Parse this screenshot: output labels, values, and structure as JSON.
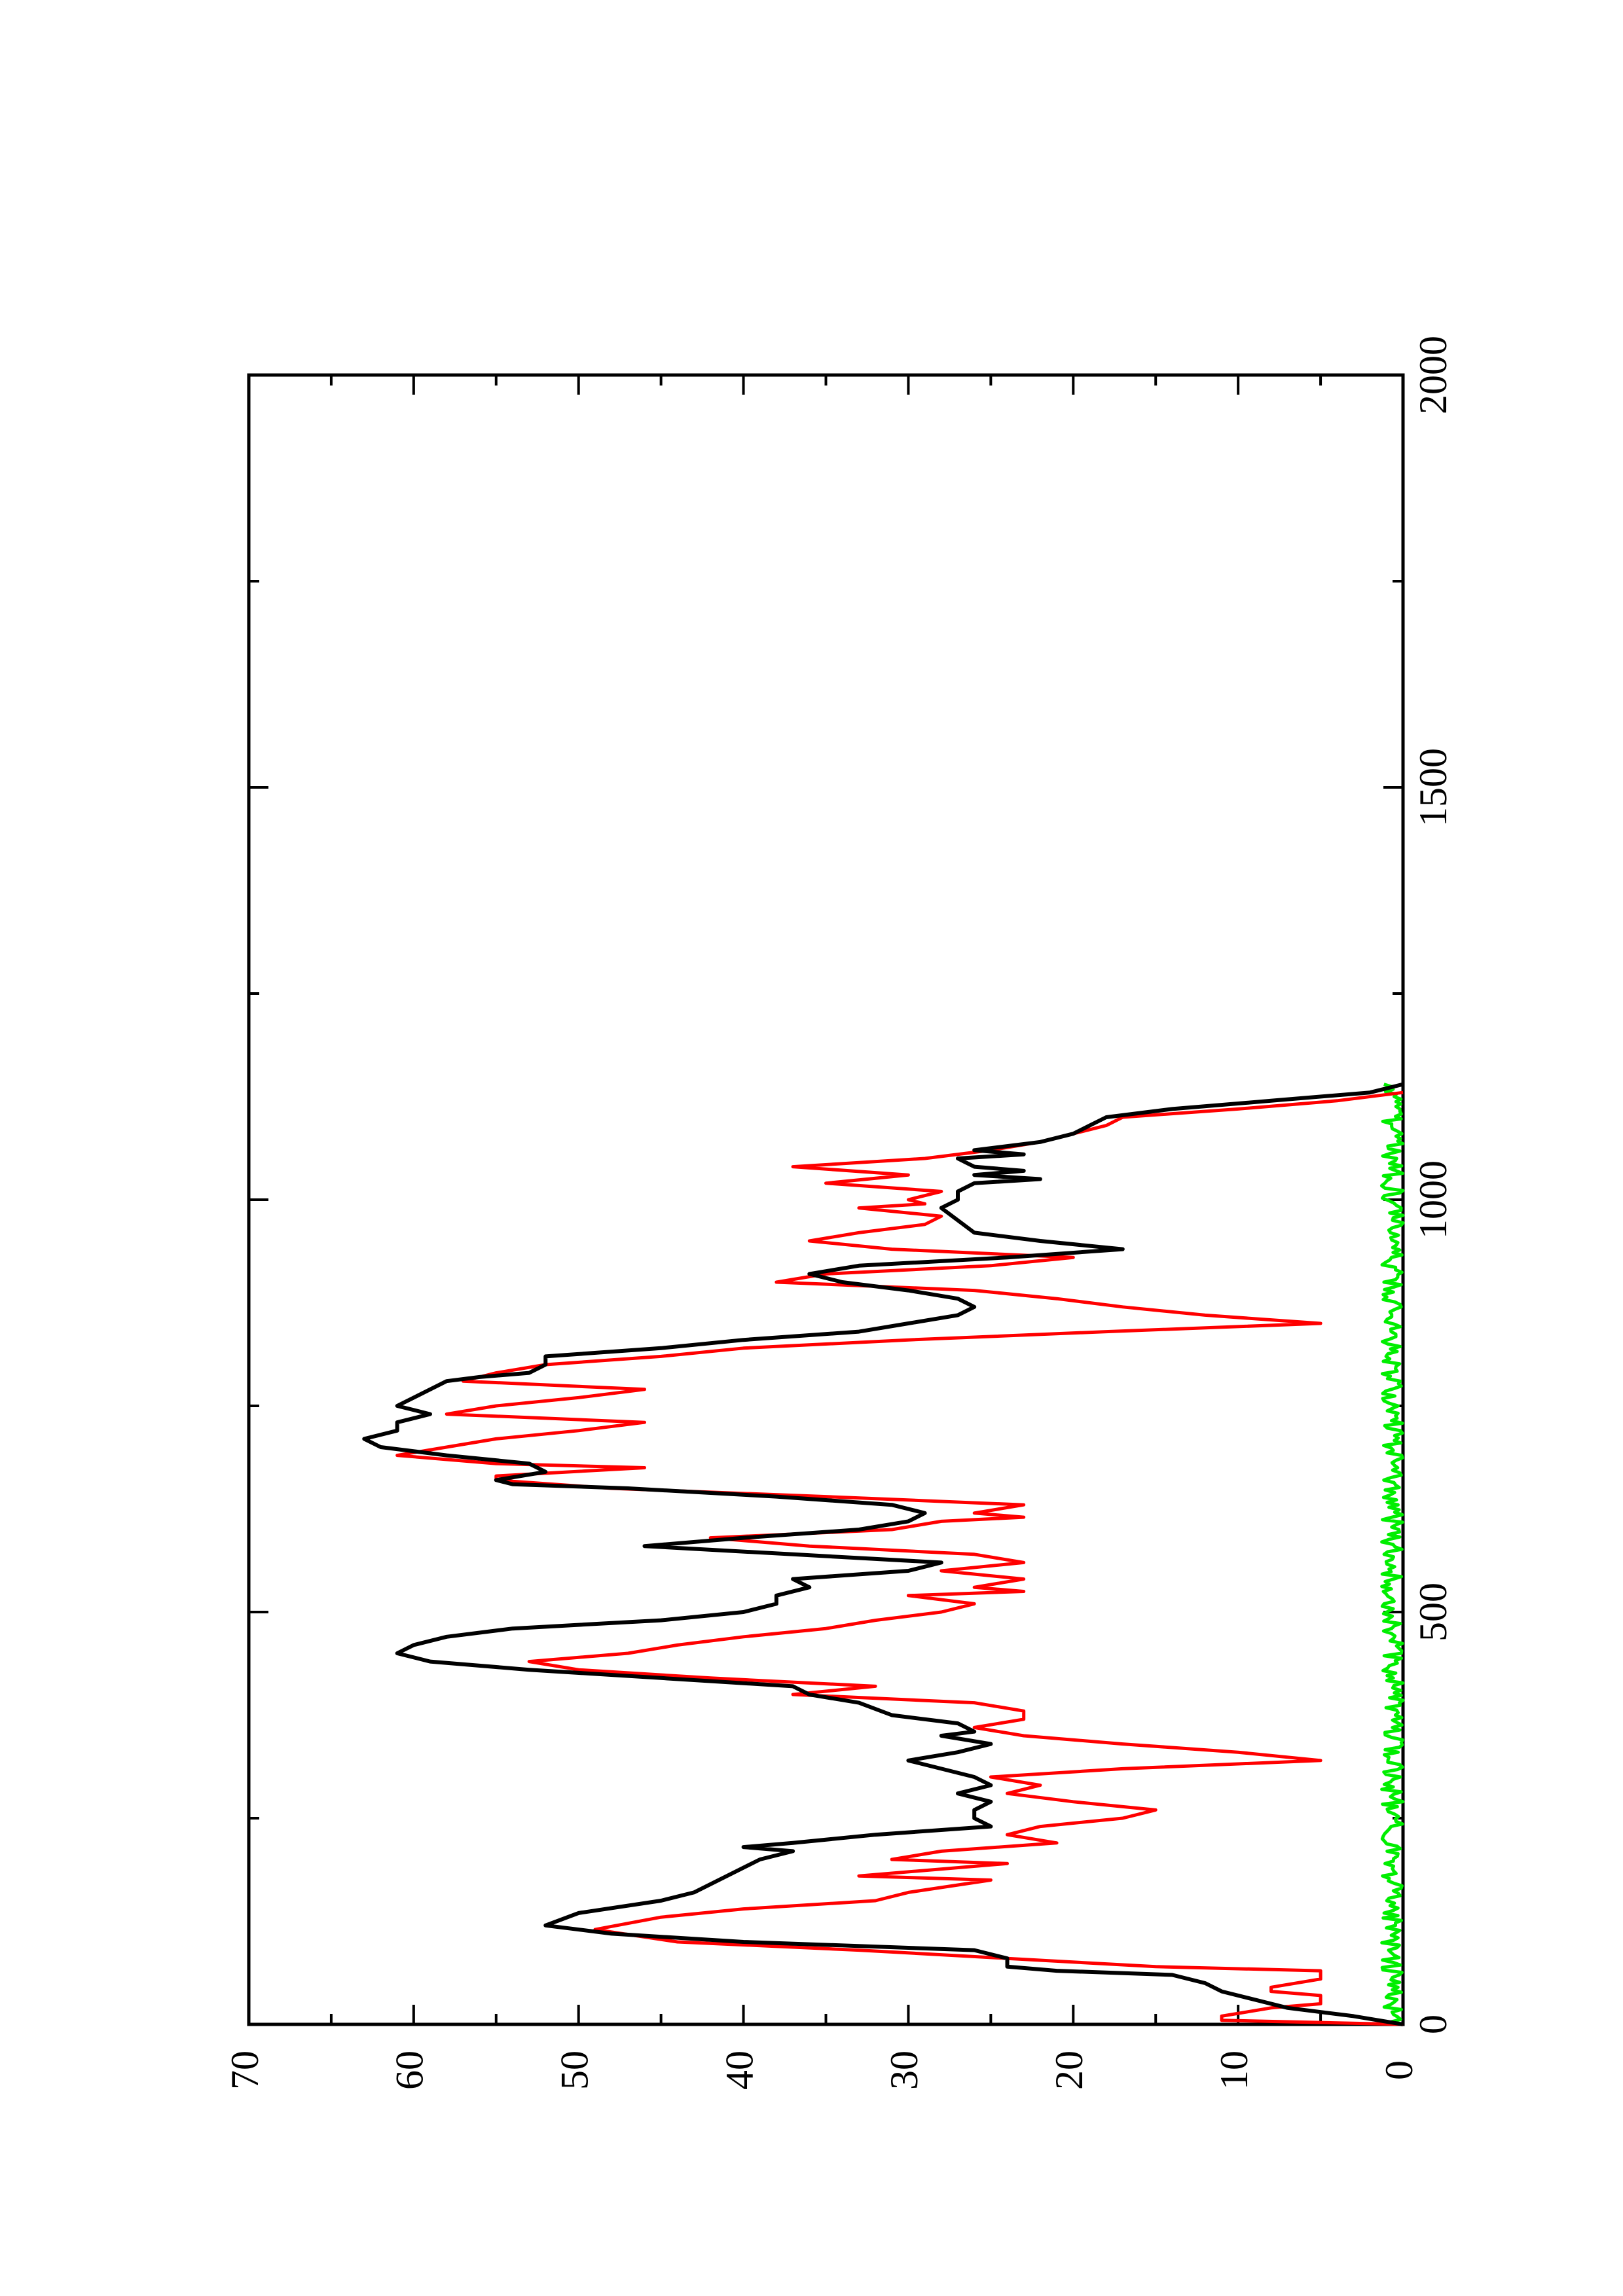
{
  "chart_data": {
    "type": "line",
    "title": "",
    "xlabel": "",
    "ylabel": "",
    "orientation": "rotated 90 degrees counter-clockwise (page in landscape)",
    "xlim": [
      0,
      2000
    ],
    "ylim": [
      0,
      70
    ],
    "x_ticks": [
      "0",
      "500",
      "1000",
      "1500",
      "2000"
    ],
    "y_ticks": [
      "0",
      "10",
      "20",
      "30",
      "40",
      "50",
      "60",
      "70"
    ],
    "grid": false,
    "legend": "none",
    "series": [
      {
        "color": "#000000",
        "points": [
          [
            0,
            0
          ],
          [
            10,
            3
          ],
          [
            20,
            7
          ],
          [
            30,
            9
          ],
          [
            40,
            11
          ],
          [
            50,
            12
          ],
          [
            60,
            14
          ],
          [
            65,
            21
          ],
          [
            70,
            24
          ],
          [
            80,
            24
          ],
          [
            90,
            26
          ],
          [
            100,
            40
          ],
          [
            110,
            48
          ],
          [
            120,
            52
          ],
          [
            135,
            50
          ],
          [
            150,
            45
          ],
          [
            160,
            43
          ],
          [
            180,
            41
          ],
          [
            190,
            40
          ],
          [
            200,
            39
          ],
          [
            210,
            37
          ],
          [
            215,
            40
          ],
          [
            220,
            37
          ],
          [
            230,
            32
          ],
          [
            240,
            25
          ],
          [
            250,
            26
          ],
          [
            260,
            26
          ],
          [
            270,
            25
          ],
          [
            280,
            27
          ],
          [
            290,
            25
          ],
          [
            300,
            26
          ],
          [
            310,
            28
          ],
          [
            320,
            30
          ],
          [
            330,
            27
          ],
          [
            340,
            25
          ],
          [
            350,
            28
          ],
          [
            355,
            26
          ],
          [
            365,
            27
          ],
          [
            375,
            31
          ],
          [
            390,
            33
          ],
          [
            400,
            36
          ],
          [
            410,
            37
          ],
          [
            420,
            45
          ],
          [
            430,
            53
          ],
          [
            440,
            59
          ],
          [
            450,
            61
          ],
          [
            460,
            60
          ],
          [
            470,
            58
          ],
          [
            480,
            54
          ],
          [
            490,
            45
          ],
          [
            500,
            40
          ],
          [
            510,
            38
          ],
          [
            520,
            38
          ],
          [
            530,
            36
          ],
          [
            540,
            37
          ],
          [
            550,
            30
          ],
          [
            560,
            28
          ],
          [
            570,
            37
          ],
          [
            580,
            46
          ],
          [
            590,
            40
          ],
          [
            600,
            33
          ],
          [
            610,
            30
          ],
          [
            620,
            29
          ],
          [
            630,
            31
          ],
          [
            640,
            38
          ],
          [
            650,
            47
          ],
          [
            655,
            54
          ],
          [
            660,
            55
          ],
          [
            670,
            52
          ],
          [
            680,
            53
          ],
          [
            690,
            58
          ],
          [
            700,
            62
          ],
          [
            710,
            63
          ],
          [
            720,
            61
          ],
          [
            730,
            61
          ],
          [
            740,
            59
          ],
          [
            750,
            61
          ],
          [
            760,
            60
          ],
          [
            780,
            58
          ],
          [
            785,
            56
          ],
          [
            790,
            53
          ],
          [
            800,
            52
          ],
          [
            810,
            52
          ],
          [
            820,
            45
          ],
          [
            830,
            40
          ],
          [
            840,
            33
          ],
          [
            850,
            30
          ],
          [
            860,
            27
          ],
          [
            870,
            26
          ],
          [
            880,
            27
          ],
          [
            890,
            30
          ],
          [
            900,
            34
          ],
          [
            910,
            36
          ],
          [
            920,
            33
          ],
          [
            930,
            24
          ],
          [
            940,
            17
          ],
          [
            950,
            22
          ],
          [
            960,
            26
          ],
          [
            975,
            27
          ],
          [
            990,
            28
          ],
          [
            1000,
            27
          ],
          [
            1010,
            27
          ],
          [
            1020,
            26
          ],
          [
            1025,
            22
          ],
          [
            1030,
            26
          ],
          [
            1035,
            23
          ],
          [
            1040,
            26
          ],
          [
            1050,
            27
          ],
          [
            1055,
            23
          ],
          [
            1060,
            26
          ],
          [
            1070,
            22
          ],
          [
            1080,
            20
          ],
          [
            1090,
            19
          ],
          [
            1100,
            18
          ],
          [
            1110,
            14
          ],
          [
            1120,
            8
          ],
          [
            1130,
            2
          ],
          [
            1140,
            0
          ]
        ]
      },
      {
        "color": "#ff0000",
        "points": [
          [
            0,
            0
          ],
          [
            5,
            11
          ],
          [
            10,
            11
          ],
          [
            20,
            8
          ],
          [
            25,
            5
          ],
          [
            35,
            5
          ],
          [
            40,
            8
          ],
          [
            45,
            8
          ],
          [
            55,
            5
          ],
          [
            65,
            5
          ],
          [
            70,
            15
          ],
          [
            80,
            24
          ],
          [
            90,
            33
          ],
          [
            100,
            44
          ],
          [
            115,
            49
          ],
          [
            130,
            45
          ],
          [
            140,
            40
          ],
          [
            150,
            32
          ],
          [
            160,
            30
          ],
          [
            175,
            25
          ],
          [
            180,
            33
          ],
          [
            195,
            24
          ],
          [
            200,
            31
          ],
          [
            210,
            28
          ],
          [
            220,
            21
          ],
          [
            230,
            24
          ],
          [
            240,
            22
          ],
          [
            250,
            17
          ],
          [
            260,
            15
          ],
          [
            270,
            20
          ],
          [
            280,
            24
          ],
          [
            290,
            22
          ],
          [
            300,
            25
          ],
          [
            310,
            17
          ],
          [
            320,
            5
          ],
          [
            330,
            10
          ],
          [
            340,
            17
          ],
          [
            350,
            23
          ],
          [
            360,
            26
          ],
          [
            370,
            23
          ],
          [
            380,
            23
          ],
          [
            390,
            26
          ],
          [
            400,
            37
          ],
          [
            410,
            32
          ],
          [
            420,
            42
          ],
          [
            430,
            50
          ],
          [
            440,
            53
          ],
          [
            450,
            47
          ],
          [
            460,
            44
          ],
          [
            470,
            40
          ],
          [
            480,
            35
          ],
          [
            490,
            32
          ],
          [
            500,
            28
          ],
          [
            510,
            26
          ],
          [
            520,
            30
          ],
          [
            525,
            23
          ],
          [
            530,
            26
          ],
          [
            540,
            23
          ],
          [
            550,
            28
          ],
          [
            560,
            23
          ],
          [
            570,
            26
          ],
          [
            580,
            36
          ],
          [
            590,
            42
          ],
          [
            600,
            31
          ],
          [
            610,
            28
          ],
          [
            615,
            23
          ],
          [
            620,
            26
          ],
          [
            630,
            23
          ],
          [
            640,
            35
          ],
          [
            650,
            48
          ],
          [
            660,
            55
          ],
          [
            665,
            55
          ],
          [
            675,
            46
          ],
          [
            680,
            55
          ],
          [
            690,
            61
          ],
          [
            700,
            58
          ],
          [
            710,
            55
          ],
          [
            720,
            50
          ],
          [
            730,
            46
          ],
          [
            740,
            58
          ],
          [
            750,
            55
          ],
          [
            760,
            50
          ],
          [
            770,
            46
          ],
          [
            780,
            57
          ],
          [
            790,
            55
          ],
          [
            800,
            52
          ],
          [
            810,
            45
          ],
          [
            820,
            40
          ],
          [
            830,
            30
          ],
          [
            840,
            18
          ],
          [
            850,
            5
          ],
          [
            860,
            12
          ],
          [
            870,
            17
          ],
          [
            880,
            21
          ],
          [
            890,
            26
          ],
          [
            900,
            38
          ],
          [
            910,
            35
          ],
          [
            920,
            25
          ],
          [
            930,
            20
          ],
          [
            940,
            31
          ],
          [
            950,
            36
          ],
          [
            960,
            33
          ],
          [
            970,
            29
          ],
          [
            980,
            28
          ],
          [
            990,
            33
          ],
          [
            995,
            29
          ],
          [
            1000,
            30
          ],
          [
            1010,
            28
          ],
          [
            1020,
            35
          ],
          [
            1030,
            30
          ],
          [
            1040,
            37
          ],
          [
            1050,
            29
          ],
          [
            1060,
            25
          ],
          [
            1070,
            22
          ],
          [
            1080,
            20
          ],
          [
            1090,
            18
          ],
          [
            1100,
            17
          ],
          [
            1110,
            10
          ],
          [
            1120,
            4
          ],
          [
            1130,
            0
          ]
        ]
      },
      {
        "color": "#00ee00",
        "points": "noisy trace near zero from x=0 to x=1140, values approximately 0 to 1.3"
      }
    ]
  }
}
